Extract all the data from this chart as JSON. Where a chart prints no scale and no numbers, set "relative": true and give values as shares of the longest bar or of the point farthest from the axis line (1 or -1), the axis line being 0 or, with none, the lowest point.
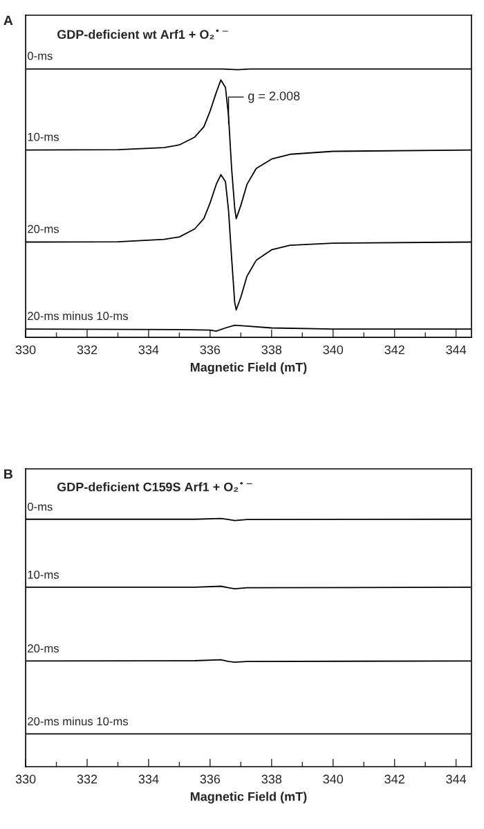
{
  "chart_data": [
    {
      "type": "line",
      "title": "GDP-deficient wt Arf1 + O₂$^{•−}$",
      "xlabel": "Magnetic Field (mT)",
      "relative": true,
      "legend": false,
      "grid": false,
      "tick_labels": "x",
      "marker": "none",
      "line_style": "solid",
      "xlim": [
        330,
        344.5
      ],
      "xticks": [
        330,
        {
          "value": 331,
          "label": null
        },
        332,
        {
          "value": 333,
          "label": null
        },
        334,
        {
          "value": 335,
          "label": null
        },
        336,
        {
          "value": 337,
          "label": null
        },
        338,
        {
          "value": 339,
          "label": null
        },
        340,
        {
          "value": 341,
          "label": null
        },
        342,
        {
          "value": 343,
          "label": null
        },
        344
      ],
      "annotations": [
        "A",
        {
          "text": "g = 2.008",
          "x": 336.6,
          "y": 0.795
        }
      ],
      "series": [
        {
          "name": "0-ms",
          "color": "#000000",
          "x": [
            330,
            336.4,
            336.9,
            337.3,
            344.5
          ],
          "values": [
            1.0,
            1.0,
            0.997,
            1.0,
            1.0
          ]
        },
        {
          "name": "10-ms",
          "color": "#000000",
          "x": [
            330,
            333,
            334.5,
            335,
            335.5,
            335.8,
            336.0,
            336.2,
            336.35,
            336.5,
            336.6,
            336.7,
            336.8,
            336.85,
            337.0,
            337.2,
            337.5,
            338,
            338.6,
            340,
            344.5
          ],
          "values": [
            0.698,
            0.699,
            0.707,
            0.717,
            0.746,
            0.785,
            0.843,
            0.912,
            0.959,
            0.931,
            0.824,
            0.629,
            0.482,
            0.442,
            0.492,
            0.57,
            0.629,
            0.664,
            0.682,
            0.693,
            0.698
          ]
        },
        {
          "name": "20-ms",
          "color": "#000000",
          "x": [
            330,
            333,
            334.5,
            335,
            335.5,
            335.8,
            336.0,
            336.2,
            336.35,
            336.5,
            336.6,
            336.7,
            336.8,
            336.85,
            337.0,
            337.2,
            337.5,
            338,
            338.6,
            340,
            344.5
          ],
          "values": [
            0.355,
            0.356,
            0.365,
            0.374,
            0.404,
            0.443,
            0.501,
            0.57,
            0.606,
            0.58,
            0.472,
            0.296,
            0.13,
            0.102,
            0.15,
            0.228,
            0.287,
            0.326,
            0.343,
            0.351,
            0.355
          ]
        },
        {
          "name": "20-ms minus 10-ms",
          "color": "#000000",
          "x": [
            330,
            335,
            336.0,
            336.2,
            336.5,
            336.8,
            337.2,
            338,
            340,
            344.5
          ],
          "values": [
            0.031,
            0.029,
            0.027,
            0.023,
            0.035,
            0.045,
            0.042,
            0.035,
            0.031,
            0.031
          ]
        }
      ]
    },
    {
      "type": "line",
      "title": "GDP-deficient C159S Arf1 + O₂$^{•−}$",
      "xlabel": "Magnetic Field (mT)",
      "relative": true,
      "legend": false,
      "grid": false,
      "tick_labels": "x",
      "marker": "none",
      "line_style": "solid",
      "xlim": [
        330,
        344.5
      ],
      "xticks": [
        330,
        {
          "value": 331,
          "label": null
        },
        332,
        {
          "value": 333,
          "label": null
        },
        334,
        {
          "value": 335,
          "label": null
        },
        336,
        {
          "value": 337,
          "label": null
        },
        338,
        {
          "value": 339,
          "label": null
        },
        340,
        {
          "value": 341,
          "label": null
        },
        342,
        {
          "value": 343,
          "label": null
        },
        344
      ],
      "annotations": [
        "B"
      ],
      "series": [
        {
          "name": "0-ms",
          "color": "#000000",
          "x": [
            330,
            335.5,
            336.35,
            336.6,
            336.8,
            337.2,
            344.5
          ],
          "values": [
            0.997,
            0.997,
            1.0,
            0.996,
            0.992,
            0.996,
            0.997
          ]
        },
        {
          "name": "10-ms",
          "color": "#000000",
          "x": [
            330,
            335.5,
            336.35,
            336.6,
            336.8,
            337.2,
            344.5
          ],
          "values": [
            0.723,
            0.723,
            0.727,
            0.721,
            0.717,
            0.721,
            0.723
          ]
        },
        {
          "name": "20-ms",
          "color": "#000000",
          "x": [
            330,
            335.5,
            336.35,
            336.6,
            336.8,
            337.2,
            344.5
          ],
          "values": [
            0.426,
            0.427,
            0.431,
            0.424,
            0.421,
            0.424,
            0.426
          ]
        },
        {
          "name": "20-ms minus 10-ms",
          "color": "#000000",
          "x": [
            330,
            336.4,
            336.8,
            344.5
          ],
          "values": [
            0.132,
            0.132,
            0.132,
            0.132
          ]
        }
      ]
    }
  ]
}
